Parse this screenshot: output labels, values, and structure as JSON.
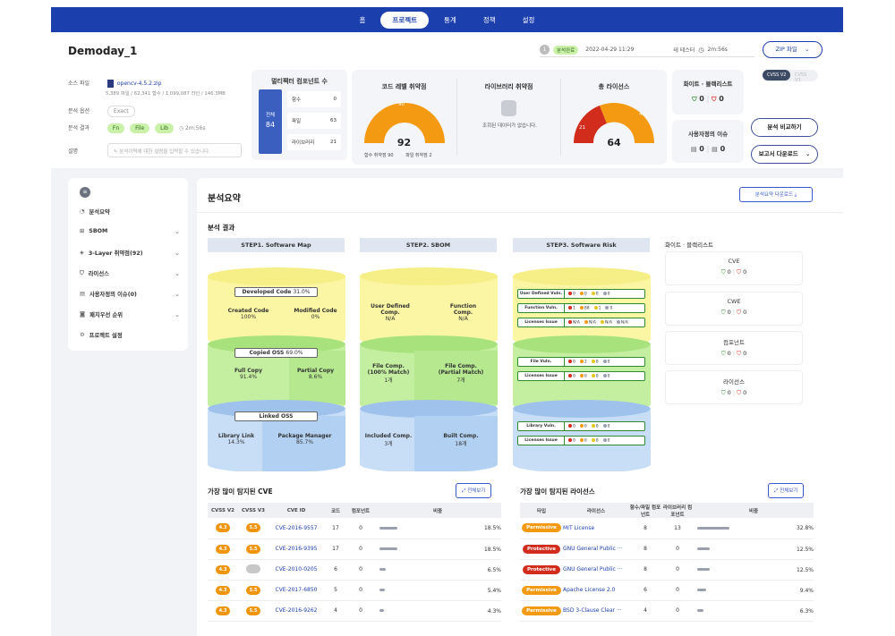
{
  "nav": {
    "items": [
      "홈",
      "프로젝트",
      "통계",
      "정책",
      "설정"
    ],
    "active": "프로젝트"
  },
  "header": {
    "title": "Demoday_1",
    "status_num": "1",
    "status_badge": "분석완료",
    "datetime": "2022-04-29 11:29",
    "user": "테 테스터",
    "duration": "2m:56s",
    "zip_button": "ZIP 파일"
  },
  "project": {
    "source_label": "소스 파일",
    "source_file": "opencv-4.5.2.zip",
    "source_stats": "5,389 파일 / 62,341 함수 / 1,099,087 라인 / 146.3MB",
    "option_label": "분석 옵션",
    "option_value": "Exact",
    "result_label": "분석 결과",
    "result_chips": [
      "Fn",
      "File",
      "Lib"
    ],
    "result_time": "2m:56s",
    "desc_label": "설명",
    "desc_placeholder": "분석이력에 대한 설명을 입력할 수 있습니다."
  },
  "multifactor": {
    "title": "멀티팩터 컴포넌트 수",
    "total_label": "전체",
    "total_value": "84",
    "rows": [
      {
        "label": "함수",
        "value": "0"
      },
      {
        "label": "파일",
        "value": "63"
      },
      {
        "label": "라이브러리",
        "value": "21"
      }
    ]
  },
  "code_vuln": {
    "title": "코드 레벨 취약점",
    "total": "92",
    "top_value": "90",
    "legend_func": "함수 취약점 90",
    "legend_file": "파일 취약점 2"
  },
  "lib_vuln": {
    "title": "라이브러리 취약점",
    "empty": "조회된 데이터가 없습니다."
  },
  "license_total": {
    "title": "총 라이선스",
    "total": "64",
    "red_value": "21",
    "orange_value": "43"
  },
  "whitelist": {
    "title": "화이트 · 블랙리스트",
    "white": "0",
    "black": "0"
  },
  "custom_issue": {
    "title": "사용자정의 이슈",
    "a": "0",
    "b": "0"
  },
  "cvss_toggle": [
    "CVSS V2",
    "CVSS V3"
  ],
  "buttons": {
    "compare": "분석 비교하기",
    "report": "보고서 다운로드"
  },
  "sidebar": {
    "items": [
      {
        "label": "분석요약",
        "icon": "chart-icon"
      },
      {
        "label": "SBOM",
        "icon": "hierarchy-icon"
      },
      {
        "label": "3-Layer 취약점(92)",
        "icon": "layers-icon"
      },
      {
        "label": "라이선스",
        "icon": "shield-icon"
      },
      {
        "label": "사용자정의 이슈(0)",
        "icon": "document-icon"
      },
      {
        "label": "패치우선 순위",
        "icon": "camera-icon"
      },
      {
        "label": "프로젝트 설정",
        "icon": "gear-icon"
      }
    ]
  },
  "summary": {
    "title": "분석요약",
    "download": "분석요약 다운로드",
    "result_heading": "분석 결과",
    "steps": [
      "STEP1. Software Map",
      "STEP2. SBOM",
      "STEP3. Software Risk"
    ],
    "map": {
      "developed": "Developed Code",
      "developed_pct": "31.0%",
      "created": "Created Code",
      "created_pct": "100%",
      "modified": "Modified Code",
      "modified_pct": "0%",
      "copied": "Copied OSS",
      "copied_pct": "69.0%",
      "full": "Full Copy",
      "full_pct": "91.4%",
      "partial": "Partial Copy",
      "partial_pct": "8.6%",
      "linked": "Linked OSS",
      "library": "Library Link",
      "library_pct": "14.3%",
      "package": "Package Manager",
      "package_pct": "85.7%"
    },
    "sbom": {
      "user_defined": "User Defined",
      "user_defined2": "Comp.",
      "user_defined_v": "N/A",
      "function": "Function",
      "function2": "Comp.",
      "function_v": "N/A",
      "file100": "File Comp.",
      "file100b": "(100% Match)",
      "file100_v": "1개",
      "filepartial": "File Comp.",
      "filepartialb": "(Partial Match)",
      "filepartial_v": "7개",
      "included": "Included Comp.",
      "included_v": "3개",
      "built": "Built Comp.",
      "built_v": "18개"
    },
    "risk": [
      {
        "label": "User Defined Vuln.",
        "vals": [
          "0",
          "0",
          "0",
          "0"
        ]
      },
      {
        "label": "Function Vuln.",
        "vals": [
          "1",
          "88",
          "1",
          "0"
        ]
      },
      {
        "label": "Licenses Issue",
        "vals": [
          "N/A",
          "N/A",
          "N/A",
          "N/A"
        ]
      },
      {
        "label": "File Vuln.",
        "vals": [
          "0",
          "2",
          "0",
          "0"
        ]
      },
      {
        "label": "Licenses Issue",
        "vals": [
          "0",
          "0",
          "0",
          "0"
        ]
      },
      {
        "label": "Library Vuln.",
        "vals": [
          "0",
          "0",
          "0",
          "0"
        ]
      },
      {
        "label": "Licenses Issue",
        "vals": [
          "0",
          "0",
          "0",
          "0"
        ]
      }
    ],
    "wb_title": "화이트 · 블랙리스트",
    "wb_cards": [
      {
        "title": "CVE",
        "white": "0",
        "black": "0"
      },
      {
        "title": "CWE",
        "white": "0",
        "black": "0"
      },
      {
        "title": "컴포넌트",
        "white": "0",
        "black": "0"
      },
      {
        "title": "라이선스",
        "white": "0",
        "black": "0"
      }
    ]
  },
  "cve_table": {
    "title": "가장 많이 탐지된 CVE",
    "view_all": "전체보기",
    "headers": [
      "CVSS V2",
      "CVSS V3",
      "CVE ID",
      "코드",
      "컴포넌트",
      "비중"
    ],
    "rows": [
      {
        "v2": "4.3",
        "v3": "5.5",
        "id": "CVE-2016-9557",
        "code": "17",
        "comp": "0",
        "ratio": "18.5%",
        "share": 0.185
      },
      {
        "v2": "4.3",
        "v3": "5.5",
        "id": "CVE-2016-9395",
        "code": "17",
        "comp": "0",
        "ratio": "18.5%",
        "share": 0.185
      },
      {
        "v2": "4.3",
        "v3": "",
        "id": "CVE-2010-0205",
        "code": "6",
        "comp": "0",
        "ratio": "6.5%",
        "share": 0.065
      },
      {
        "v2": "4.3",
        "v3": "5.5",
        "id": "CVE-2017-6850",
        "code": "5",
        "comp": "0",
        "ratio": "5.4%",
        "share": 0.054
      },
      {
        "v2": "4.3",
        "v3": "5.5",
        "id": "CVE-2016-9262",
        "code": "4",
        "comp": "0",
        "ratio": "4.3%",
        "share": 0.043
      }
    ]
  },
  "license_table": {
    "title": "가장 많이 탐지된 라이선스",
    "view_all": "전체보기",
    "headers": [
      "타입",
      "라이선스",
      "함수/파일 컴포넌트",
      "라이브러리 컴포넌트",
      "비중"
    ],
    "rows": [
      {
        "type": "Permissive",
        "name": "MIT License",
        "fn": "8",
        "lib": "13",
        "ratio": "32.8%",
        "share": 0.328
      },
      {
        "type": "Protective",
        "name": "GNU General Public ···",
        "fn": "8",
        "lib": "0",
        "ratio": "12.5%",
        "share": 0.125
      },
      {
        "type": "Protective",
        "name": "GNU General Public ···",
        "fn": "8",
        "lib": "0",
        "ratio": "12.5%",
        "share": 0.125
      },
      {
        "type": "Permissive",
        "name": "Apache License 2.0",
        "fn": "6",
        "lib": "0",
        "ratio": "9.4%",
        "share": 0.094
      },
      {
        "type": "Permissive",
        "name": "BSD 3-Clause Clear ···",
        "fn": "4",
        "lib": "0",
        "ratio": "6.3%",
        "share": 0.063
      }
    ]
  },
  "colors": {
    "nav": "#1c3fae",
    "gauge_orange": "#f39a12",
    "gauge_red": "#d22c1d",
    "chip_green": "#c9f1a9"
  }
}
